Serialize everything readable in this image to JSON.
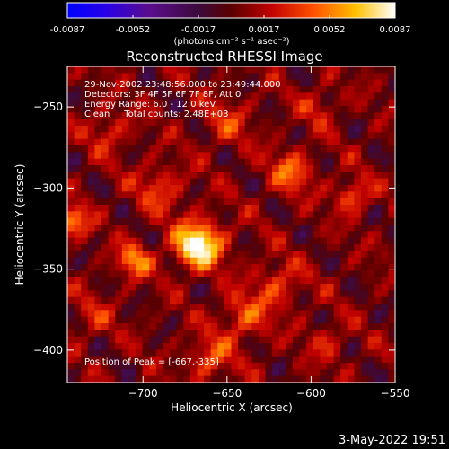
{
  "colorbar": {
    "ticks": [
      "-0.0087",
      "-0.0052",
      "-0.0017",
      "0.0017",
      "0.0052",
      "0.0087"
    ],
    "units": "(photons cm⁻² s⁻¹ asec⁻²)",
    "colormap": "blue-purple-red-orange-yellow-white",
    "range": [
      -0.0087,
      0.0087
    ]
  },
  "chart_data": {
    "type": "heatmap",
    "title": "Reconstructed RHESSI Image",
    "xlabel": "Heliocentric X (arcsec)",
    "ylabel": "Heliocentric Y (arcsec)",
    "xlim": [
      -745,
      -550
    ],
    "ylim": [
      -420,
      -225
    ],
    "x_ticks": [
      -700,
      -650,
      -600,
      -550
    ],
    "y_ticks": [
      -250,
      -300,
      -350,
      -400
    ],
    "annotations": [
      "29-Nov-2002 23:48:56.000 to 23:49:44.000",
      "Detectors: 3F 4F 5F 6F 7F 8F, Att 0",
      "Energy Range: 6.0 - 12.0 keV",
      "Clean     Total counts: 2.48E+03"
    ],
    "peak_label": "Position of Peak = [-667,-335]",
    "peak": [
      -667,
      -335
    ],
    "peak_value": 0.0087,
    "blobs": [
      {
        "x": -667,
        "y": -335,
        "amp": 0.0087,
        "sigma": 10
      },
      {
        "x": -705,
        "y": -345,
        "amp": 0.005,
        "sigma": 7
      },
      {
        "x": -742,
        "y": -320,
        "amp": 0.0045,
        "sigma": 7
      },
      {
        "x": -612,
        "y": -290,
        "amp": 0.004,
        "sigma": 9
      },
      {
        "x": -575,
        "y": -305,
        "amp": 0.004,
        "sigma": 7
      },
      {
        "x": -690,
        "y": -300,
        "amp": 0.003,
        "sigma": 10
      },
      {
        "x": -640,
        "y": -380,
        "amp": 0.0035,
        "sigma": 10
      },
      {
        "x": -660,
        "y": -405,
        "amp": 0.0035,
        "sigma": 9
      },
      {
        "x": -620,
        "y": -360,
        "amp": 0.003,
        "sigma": 10
      },
      {
        "x": -720,
        "y": -265,
        "amp": 0.0025,
        "sigma": 9
      },
      {
        "x": -650,
        "y": -260,
        "amp": 0.0025,
        "sigma": 10
      },
      {
        "x": -595,
        "y": -250,
        "amp": 0.0022,
        "sigma": 8
      },
      {
        "x": -590,
        "y": -395,
        "amp": 0.0022,
        "sigma": 8
      },
      {
        "x": -730,
        "y": -380,
        "amp": 0.002,
        "sigma": 9
      }
    ]
  },
  "footer": {
    "timestamp": "3-May-2022 19:51"
  }
}
